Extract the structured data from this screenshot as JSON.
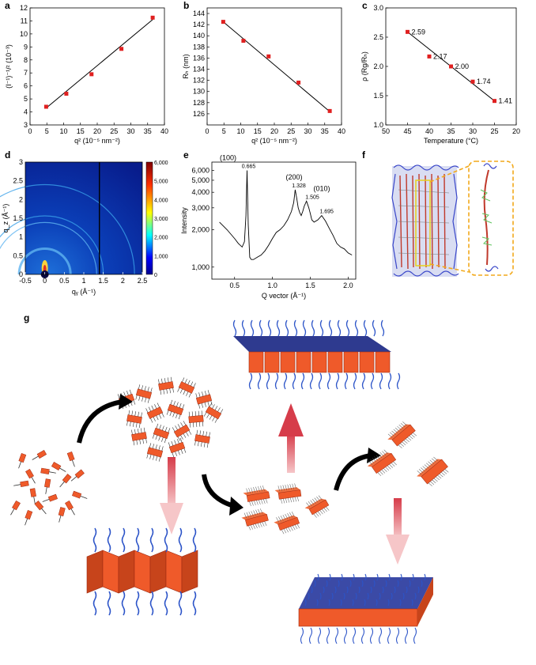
{
  "panel_labels": [
    "a",
    "b",
    "c",
    "d",
    "e",
    "f",
    "g"
  ],
  "chart_data": [
    {
      "id": "a",
      "type": "scatter",
      "xlabel": "q² (10⁻⁵ nm⁻²)",
      "ylabel": "(I⁻¹)⁻¹/² (10⁻³)",
      "xlim": [
        0,
        40
      ],
      "ylim": [
        3,
        12
      ],
      "xticks": [
        "0",
        "5",
        "10",
        "15",
        "20",
        "25",
        "30",
        "35",
        "40"
      ],
      "yticks": [
        "3",
        "4",
        "5",
        "6",
        "7",
        "8",
        "9",
        "10",
        "11",
        "12"
      ],
      "x": [
        4.8,
        10.8,
        18.3,
        27.2,
        36.5
      ],
      "y": [
        4.4,
        5.4,
        6.9,
        8.85,
        11.25
      ],
      "fit_line": [
        [
          4.8,
          4.3
        ],
        [
          36.5,
          11.1
        ]
      ],
      "marker_color": "#e02020"
    },
    {
      "id": "b",
      "type": "scatter",
      "xlabel": "q² (10⁻⁵ nm⁻²)",
      "ylabel": "Rₕ (nm)",
      "xlim": [
        0,
        40
      ],
      "ylim": [
        124,
        145
      ],
      "xticks": [
        "0",
        "5",
        "10",
        "15",
        "20",
        "25",
        "30",
        "35",
        "40"
      ],
      "yticks": [
        "126",
        "128",
        "130",
        "132",
        "134",
        "136",
        "138",
        "140",
        "142",
        "144"
      ],
      "x": [
        4.8,
        10.8,
        18.3,
        27.2,
        36.5
      ],
      "y": [
        142.5,
        139.1,
        136.3,
        131.6,
        126.5
      ],
      "fit_line": [
        [
          4.8,
          142.5
        ],
        [
          36.5,
          126.4
        ]
      ],
      "marker_color": "#e02020"
    },
    {
      "id": "c",
      "type": "scatter",
      "xlabel": "Temperature (°C)",
      "ylabel": "ρ (Rg/Rₕ)",
      "xlim": [
        50,
        20
      ],
      "ylim": [
        1.0,
        3.0
      ],
      "xticks": [
        "50",
        "45",
        "40",
        "35",
        "30",
        "25",
        "20"
      ],
      "yticks": [
        "1.0",
        "1.5",
        "2.0",
        "2.5",
        "3.0"
      ],
      "x": [
        45,
        40,
        35,
        30,
        25
      ],
      "y": [
        2.59,
        2.17,
        2.0,
        1.74,
        1.41
      ],
      "labels": [
        "2.59",
        "2.17",
        "2.00",
        "1.74",
        "1.41"
      ],
      "fit_line": [
        [
          45,
          2.59
        ],
        [
          25,
          1.41
        ]
      ],
      "marker_color": "#e02020"
    },
    {
      "id": "d",
      "type": "heatmap",
      "xlabel": "qᵧ (Å⁻¹)",
      "ylabel": "q_z (Å⁻¹)",
      "xlim": [
        -0.5,
        2.5
      ],
      "ylim": [
        0,
        3
      ],
      "xticks": [
        "-0.5",
        "0",
        "0.5",
        "1",
        "1.5",
        "2",
        "2.5"
      ],
      "yticks": [
        "0",
        "0.5",
        "1",
        "1.5",
        "2",
        "2.5",
        "3"
      ],
      "colorbar_ticks": [
        "0",
        "1,000",
        "2,000",
        "3,000",
        "4,000",
        "5,000",
        "6,000"
      ]
    },
    {
      "id": "e",
      "type": "line",
      "xlabel": "Q vector (Å⁻¹)",
      "ylabel": "Intensity",
      "xlim": [
        0.2,
        2.1
      ],
      "ylim": [
        800,
        7000
      ],
      "yscale": "log",
      "xticks": [
        "0.5",
        "1.0",
        "1.5",
        "2.0"
      ],
      "yticks": [
        "1,000",
        "2,000",
        "3,000",
        "4,000",
        "5,000",
        "6,000"
      ],
      "x": [
        0.3,
        0.4,
        0.5,
        0.55,
        0.6,
        0.63,
        0.65,
        0.665,
        0.68,
        0.7,
        0.72,
        0.75,
        0.8,
        0.85,
        0.9,
        0.95,
        1.0,
        1.05,
        1.1,
        1.15,
        1.2,
        1.25,
        1.28,
        1.3,
        1.32,
        1.34,
        1.36,
        1.38,
        1.4,
        1.42,
        1.45,
        1.48,
        1.5,
        1.52,
        1.55,
        1.6,
        1.65,
        1.7,
        1.75,
        1.8,
        1.85,
        1.9,
        1.95,
        2.0,
        2.05
      ],
      "y": [
        2300,
        2000,
        1700,
        1550,
        1450,
        1600,
        2600,
        6000,
        2200,
        1200,
        1150,
        1150,
        1200,
        1250,
        1350,
        1500,
        1700,
        1900,
        2000,
        2150,
        2400,
        2800,
        3300,
        4200,
        3600,
        3000,
        2750,
        2600,
        2800,
        3100,
        3400,
        3000,
        2700,
        2400,
        2300,
        2400,
        2600,
        2350,
        2050,
        1800,
        1550,
        1450,
        1400,
        1300,
        1250
      ],
      "peaks": [
        {
          "label": "(100)",
          "value": "0.665"
        },
        {
          "label": "(200)",
          "value": "1.328"
        },
        {
          "label": "(010)",
          "value": "1.505"
        },
        {
          "label": "",
          "value": "1.695"
        }
      ]
    }
  ],
  "colors": {
    "marker": "#e02020",
    "block": "#ef5a2a",
    "block_dark": "#9e2a12",
    "chain": "#2c54c8",
    "arrow_red": "#d63c4a",
    "dash_box": "#f2a91b"
  }
}
